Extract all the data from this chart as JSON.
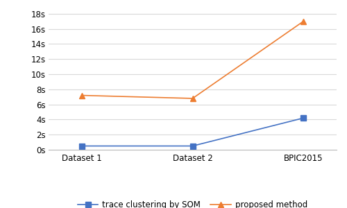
{
  "categories": [
    "Dataset 1",
    "Dataset 2",
    "BPIC2015"
  ],
  "series": [
    {
      "label": "trace clustering by SOM",
      "values": [
        0.5,
        0.5,
        4.2
      ],
      "color": "#4472c4",
      "marker": "s",
      "linestyle": "-"
    },
    {
      "label": "proposed method",
      "values": [
        7.2,
        6.8,
        17.0
      ],
      "color": "#ed7d31",
      "marker": "^",
      "linestyle": "-"
    }
  ],
  "ylim": [
    0,
    19
  ],
  "yticks": [
    0,
    2,
    4,
    6,
    8,
    10,
    12,
    14,
    16,
    18
  ],
  "ytick_labels": [
    "0s",
    "2s",
    "4s",
    "6s",
    "8s",
    "10s",
    "12s",
    "14s",
    "16s",
    "18s"
  ],
  "grid_color": "#d9d9d9",
  "background_color": "#ffffff",
  "legend_fontsize": 8.5,
  "tick_fontsize": 8.5,
  "marker_size": 6,
  "linewidth": 1.2
}
